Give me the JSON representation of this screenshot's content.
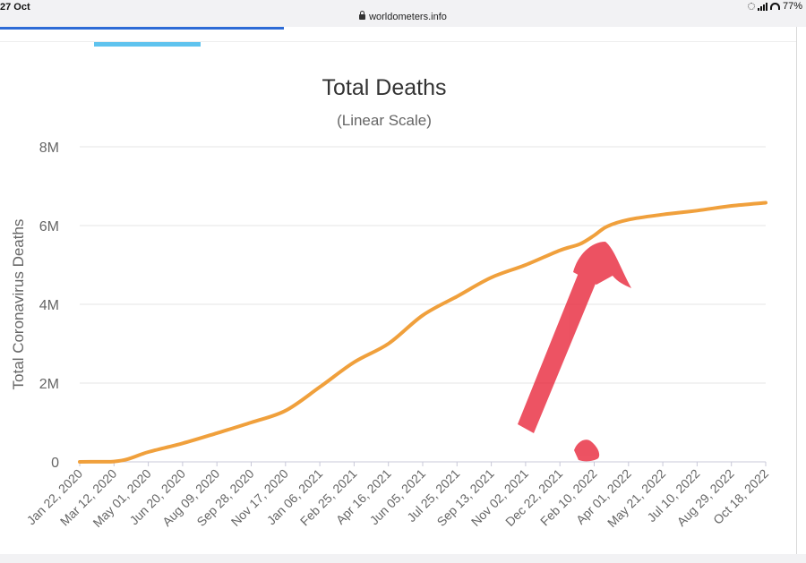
{
  "status_bar": {
    "date": "27 Oct",
    "url": "worldometers.info",
    "battery": "77%"
  },
  "chart_data": {
    "type": "line",
    "title": "Total Deaths",
    "subtitle": "(Linear Scale)",
    "ylabel": "Total Coronavirus Deaths",
    "xlabel": "",
    "y_tick_values": [
      0,
      2000000,
      4000000,
      6000000,
      8000000
    ],
    "y_tick_labels": [
      "0",
      "2M",
      "4M",
      "6M",
      "8M"
    ],
    "ylim": [
      0,
      8000000
    ],
    "x_tick_labels": [
      "Jan 22, 2020",
      "Mar 12, 2020",
      "May 01, 2020",
      "Jun 20, 2020",
      "Aug 09, 2020",
      "Sep 28, 2020",
      "Nov 17, 2020",
      "Jan 06, 2021",
      "Feb 25, 2021",
      "Apr 16, 2021",
      "Jun 05, 2021",
      "Jul 25, 2021",
      "Sep 13, 2021",
      "Nov 02, 2021",
      "Dec 22, 2021",
      "Feb 10, 2022",
      "Apr 01, 2022",
      "May 21, 2022",
      "Jul 10, 2022",
      "Aug 29, 2022",
      "Oct 18, 2022"
    ],
    "grid": true,
    "line_color": "#f0a03c",
    "series": [
      {
        "x": [
          "Jan 22, 2020",
          "Feb 20, 2020",
          "Mar 12, 2020",
          "Apr 01, 2020",
          "May 01, 2020",
          "Jun 20, 2020",
          "Aug 09, 2020",
          "Sep 28, 2020",
          "Nov 17, 2020",
          "Jan 06, 2021",
          "Feb 25, 2021",
          "Apr 16, 2021",
          "Jun 05, 2021",
          "Jul 25, 2021",
          "Sep 13, 2021",
          "Nov 02, 2021",
          "Dec 22, 2021",
          "Jan 20, 2022",
          "Feb 10, 2022",
          "Mar 01, 2022",
          "Apr 01, 2022",
          "May 21, 2022",
          "Jul 10, 2022",
          "Aug 29, 2022",
          "Oct 18, 2022"
        ],
        "values": [
          0,
          3000,
          10000,
          70000,
          250000,
          470000,
          730000,
          1000000,
          1300000,
          1900000,
          2530000,
          3000000,
          3720000,
          4200000,
          4680000,
          5000000,
          5370000,
          5530000,
          5750000,
          5980000,
          6150000,
          6280000,
          6380000,
          6500000,
          6580000
        ]
      }
    ]
  },
  "annotation": {
    "arrow_color": "#e8283c"
  }
}
